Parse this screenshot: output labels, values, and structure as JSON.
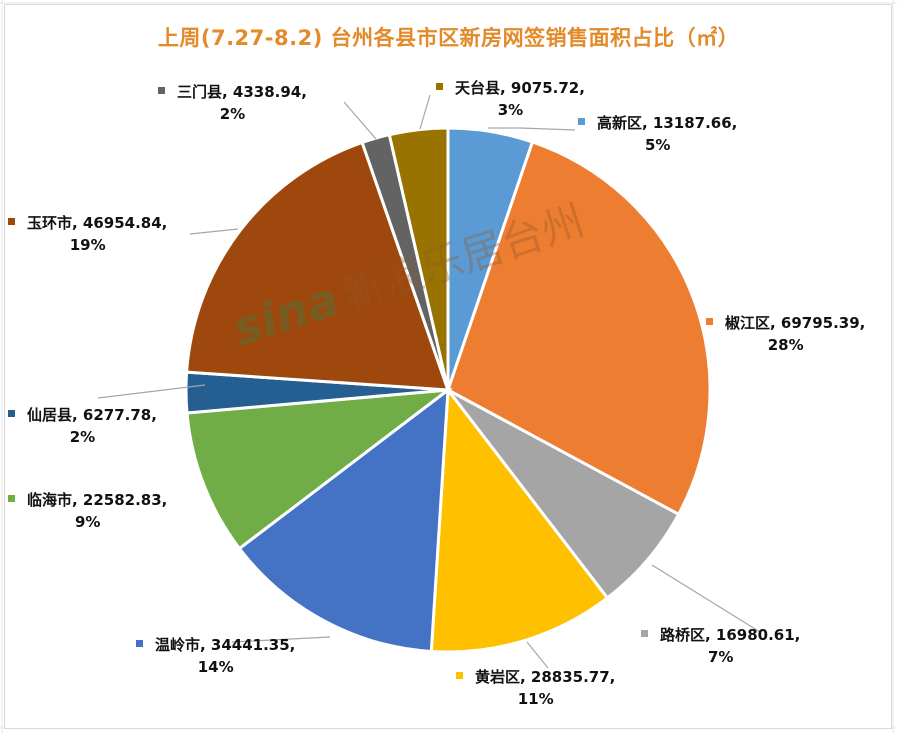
{
  "chart_data": {
    "type": "pie",
    "title": "上周(7.27-8.2) 台州各县市区新房网签销售面积占比（㎡）",
    "unit": "㎡",
    "start_angle_deg": 0,
    "direction": "clockwise",
    "categories": [
      "高新区",
      "椒江区",
      "路桥区",
      "黄岩区",
      "温岭市",
      "临海市",
      "仙居县",
      "玉环市",
      "三门县",
      "天台县"
    ],
    "values": [
      13187.66,
      69795.39,
      16980.61,
      28835.77,
      34441.35,
      22582.83,
      6277.78,
      46954.84,
      4338.94,
      9075.72
    ],
    "percentages": [
      "5%",
      "28%",
      "7%",
      "11%",
      "14%",
      "9%",
      "2%",
      "19%",
      "2%",
      "3%"
    ],
    "colors": [
      "#5b9bd5",
      "#ed7d31",
      "#a5a5a5",
      "#ffc000",
      "#4472c4",
      "#70ad47",
      "#255e91",
      "#9e480e",
      "#636363",
      "#997300"
    ],
    "legend_position": "data-labels",
    "grid": false
  },
  "labels": [
    {
      "name": "高新区",
      "value": "13187.66",
      "pct": "5%",
      "row1": "高新区, 13187.66,",
      "row2": "5%"
    },
    {
      "name": "椒江区",
      "value": "69795.39",
      "pct": "28%",
      "row1": "椒江区, 69795.39,",
      "row2": "28%"
    },
    {
      "name": "路桥区",
      "value": "16980.61",
      "pct": "7%",
      "row1": "路桥区, 16980.61,",
      "row2": "7%"
    },
    {
      "name": "黄岩区",
      "value": "28835.77",
      "pct": "11%",
      "row1": "黄岩区, 28835.77,",
      "row2": "11%"
    },
    {
      "name": "温岭市",
      "value": "34441.35",
      "pct": "14%",
      "row1": "温岭市, 34441.35,",
      "row2": "14%"
    },
    {
      "name": "临海市",
      "value": "22582.83",
      "pct": "9%",
      "row1": "临海市, 22582.83,",
      "row2": "9%"
    },
    {
      "name": "仙居县",
      "value": "6277.78",
      "pct": "2%",
      "row1": "仙居县, 6277.78,",
      "row2": "2%"
    },
    {
      "name": "玉环市",
      "value": "46954.84",
      "pct": "19%",
      "row1": "玉环市, 46954.84,",
      "row2": "19%"
    },
    {
      "name": "三门县",
      "value": "4338.94",
      "pct": "2%",
      "row1": "三门县, 4338.94,",
      "row2": "2%"
    },
    {
      "name": "天台县",
      "value": "9075.72",
      "pct": "3%",
      "row1": "天台县, 9075.72,",
      "row2": "3%"
    }
  ],
  "watermark": {
    "brand": "sina",
    "text": "新浪乐居台州"
  }
}
